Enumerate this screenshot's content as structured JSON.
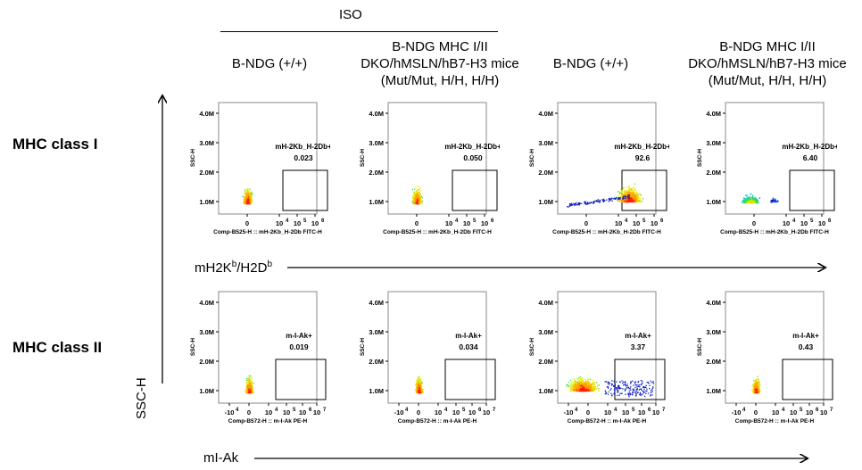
{
  "header": {
    "iso_label": "ISO",
    "columns": [
      {
        "label": "B-NDG (+/+)"
      },
      {
        "label": "B-NDG MHC I/II\nDKO/hMSLN/hB7-H3 mice\n(Mut/Mut, H/H, H/H)"
      },
      {
        "label": "B-NDG (+/+)"
      },
      {
        "label": "B-NDG MHC I/II\nDKO/hMSLN/hB7-H3 mice\n(Mut/Mut, H/H, H/H)"
      }
    ]
  },
  "rows": [
    {
      "label": "MHC class I"
    },
    {
      "label": "MHC class II"
    }
  ],
  "axes": {
    "y_main_label": "SSC-H",
    "x_row1_label": "mH2K",
    "x_row1_sup1": "b",
    "x_row1_mid": "/H2D",
    "x_row1_sup2": "b",
    "x_row2_label": "mI-Ak"
  },
  "chart_data": {
    "type": "scatter",
    "plots": [
      {
        "row": 1,
        "col": 1,
        "gate": "mH-2Kb_H-2Db+",
        "value": "0.023",
        "xlabel": "Comp-B525-H :: mH-2Kb_H-2Db FITC-H",
        "ylabel": "SSC-H",
        "y_ticks": [
          "1.0M",
          "2.0M",
          "3.0M",
          "4.0M"
        ],
        "x_ticks": [
          "0",
          "10",
          "10",
          "10"
        ],
        "x_exps": [
          "",
          "4",
          "5",
          "6"
        ],
        "pattern": "negative"
      },
      {
        "row": 1,
        "col": 2,
        "gate": "mH-2Kb_H-2Db+",
        "value": "0.050",
        "xlabel": "Comp-B525-H :: mH-2Kb_H-2Db FITC-H",
        "ylabel": "SSC-H",
        "y_ticks": [
          "1.0M",
          "2.0M",
          "3.0M",
          "4.0M"
        ],
        "x_ticks": [
          "0",
          "10",
          "10",
          "10"
        ],
        "x_exps": [
          "",
          "4",
          "5",
          "6"
        ],
        "pattern": "negative"
      },
      {
        "row": 1,
        "col": 3,
        "gate": "mH-2Kb_H-2Db+",
        "value": "92.6",
        "xlabel": "Comp-B525-H :: mH-2Kb_H-2Db FITC-H",
        "ylabel": "SSC-H",
        "y_ticks": [
          "1.0M",
          "2.0M",
          "3.0M",
          "4.0M"
        ],
        "x_ticks": [
          "0",
          "10",
          "10",
          "10"
        ],
        "x_exps": [
          "",
          "4",
          "5",
          "6"
        ],
        "pattern": "positive"
      },
      {
        "row": 1,
        "col": 4,
        "gate": "mH-2Kb_H-2Db+",
        "value": "6.40",
        "xlabel": "Comp-B525-H :: mH-2Kb_H-2Db FITC-H",
        "ylabel": "SSC-H",
        "y_ticks": [
          "1.0M",
          "2.0M",
          "3.0M",
          "4.0M"
        ],
        "x_ticks": [
          "0",
          "10",
          "10",
          "10"
        ],
        "x_exps": [
          "",
          "4",
          "5",
          "6"
        ],
        "pattern": "low"
      },
      {
        "row": 2,
        "col": 1,
        "gate": "m-I-Ak+",
        "value": "0.019",
        "xlabel": "Comp-B572-H :: m-I-Ak PE-H",
        "ylabel": "SSC-H",
        "y_ticks": [
          "1.0M",
          "2.0M",
          "3.0M",
          "4.0M"
        ],
        "x_ticks": [
          "-10",
          "0",
          "10",
          "10",
          "10",
          "10"
        ],
        "x_exps": [
          "4",
          "",
          "4",
          "5",
          "6",
          "7"
        ],
        "pattern": "negative2"
      },
      {
        "row": 2,
        "col": 2,
        "gate": "m-I-Ak+",
        "value": "0.034",
        "xlabel": "Comp-B572-H :: m-I-Ak PE-H",
        "ylabel": "SSC-H",
        "y_ticks": [
          "1.0M",
          "2.0M",
          "3.0M",
          "4.0M"
        ],
        "x_ticks": [
          "-10",
          "0",
          "10",
          "10",
          "10",
          "10"
        ],
        "x_exps": [
          "4",
          "",
          "4",
          "5",
          "6",
          "7"
        ],
        "pattern": "negative2"
      },
      {
        "row": 2,
        "col": 3,
        "gate": "m-I-Ak+",
        "value": "3.37",
        "xlabel": "Comp-B572-H :: m-I-Ak PE-H",
        "ylabel": "SSC-H",
        "y_ticks": [
          "1.0M",
          "2.0M",
          "3.0M",
          "4.0M"
        ],
        "x_ticks": [
          "-10",
          "0",
          "10",
          "10",
          "10",
          "10"
        ],
        "x_exps": [
          "4",
          "",
          "4",
          "5",
          "6",
          "7"
        ],
        "pattern": "spread"
      },
      {
        "row": 2,
        "col": 4,
        "gate": "m-I-Ak+",
        "value": "0.43",
        "xlabel": "Comp-B572-H :: m-I-Ak PE-H",
        "ylabel": "SSC-H",
        "y_ticks": [
          "1.0M",
          "2.0M",
          "3.0M",
          "4.0M"
        ],
        "x_ticks": [
          "-10",
          "0",
          "10",
          "10",
          "10",
          "10"
        ],
        "x_exps": [
          "4",
          "",
          "4",
          "5",
          "6",
          "7"
        ],
        "pattern": "negative2"
      }
    ]
  }
}
